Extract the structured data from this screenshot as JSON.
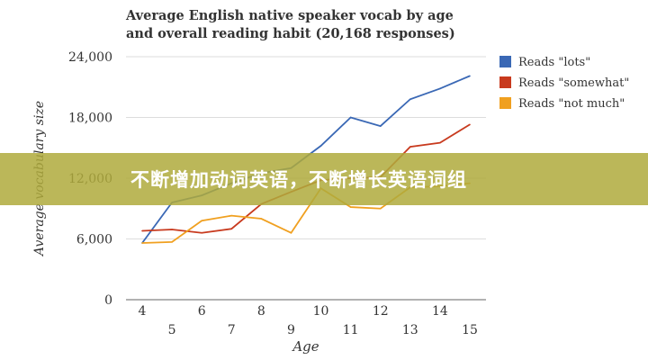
{
  "chart_data": {
    "type": "line",
    "title_lines": [
      "Average English native speaker vocab by age",
      "and overall reading habit (20,168 responses)"
    ],
    "xlabel": "Age",
    "ylabel": "Average vocabulary size",
    "x": [
      4,
      5,
      6,
      7,
      8,
      9,
      10,
      11,
      12,
      13,
      14,
      15
    ],
    "ylim": [
      0,
      24000
    ],
    "yticks": [
      0,
      6000,
      12000,
      18000,
      24000
    ],
    "ytick_labels": [
      "0",
      "6,000",
      "12,000",
      "18,000",
      "24,000"
    ],
    "grid": true,
    "legend": "right",
    "series": [
      {
        "name": "Reads \"lots\"",
        "color": "#3a68b5",
        "values": [
          5600,
          9600,
          10300,
          11500,
          12500,
          13000,
          15200,
          18000,
          17150,
          19800,
          20850,
          22100
        ]
      },
      {
        "name": "Reads \"somewhat\"",
        "color": "#c83a1e",
        "values": [
          6800,
          6930,
          6600,
          7000,
          9450,
          10650,
          11800,
          12000,
          12100,
          15100,
          15500,
          17300
        ]
      },
      {
        "name": "Reads \"not much\"",
        "color": "#f0a020",
        "values": [
          5600,
          5700,
          7800,
          8300,
          8000,
          6600,
          11000,
          9150,
          9000,
          11100,
          11200,
          11500
        ]
      }
    ]
  },
  "banner": {
    "text": "不断增加动词英语，不断增长英语词组",
    "color": "#afaa3c"
  }
}
